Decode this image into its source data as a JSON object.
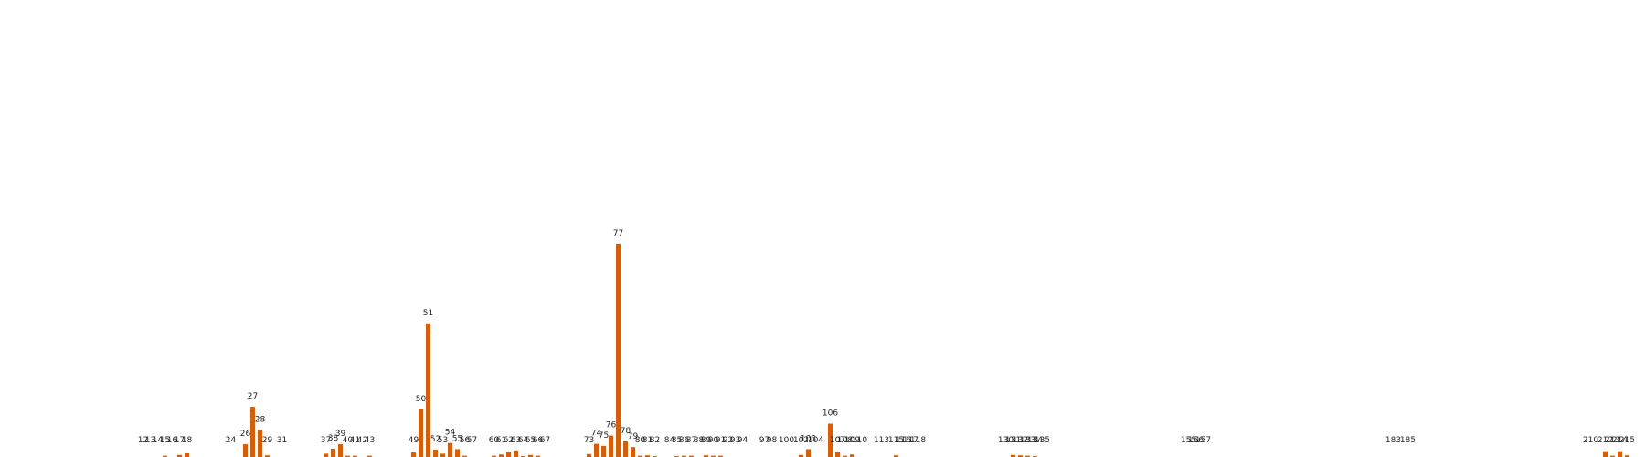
{
  "chart_data": {
    "type": "bar",
    "title": "",
    "xlabel": "",
    "ylabel": "",
    "color": "#d35f0a",
    "axes_visible": false,
    "grid": false,
    "ylim": [
      0,
      106
    ],
    "categories": [
      "12",
      "13",
      "14",
      "15",
      "16",
      "17",
      "18",
      "24",
      "26",
      "27",
      "28",
      "29",
      "31",
      "37",
      "38",
      "39",
      "40",
      "41",
      "42",
      "43",
      "49",
      "50",
      "51",
      "52",
      "53",
      "54",
      "55",
      "56",
      "57",
      "60",
      "61",
      "62",
      "63",
      "64",
      "65",
      "66",
      "67",
      "73",
      "74",
      "75",
      "76",
      "77",
      "78",
      "79",
      "80",
      "81",
      "82",
      "84",
      "85",
      "86",
      "87",
      "88",
      "89",
      "90",
      "91",
      "92",
      "93",
      "94",
      "97",
      "98",
      "100",
      "102",
      "103",
      "104",
      "106",
      "107",
      "108",
      "109",
      "110",
      "113",
      "115",
      "116",
      "117",
      "118",
      "130",
      "131",
      "132",
      "133",
      "134",
      "135",
      "155",
      "156",
      "157",
      "183",
      "185",
      "210",
      "212",
      "213",
      "214",
      "215"
    ],
    "values": [
      0,
      0,
      0,
      0.3,
      0,
      0.5,
      0.9,
      0,
      3.1,
      12.2,
      6.6,
      0.4,
      0,
      0.8,
      2,
      3.1,
      0.3,
      0.3,
      0,
      0.3,
      1.1,
      11.6,
      32.5,
      1.8,
      0.8,
      3.4,
      1.9,
      0.3,
      0,
      0.3,
      0.6,
      1.2,
      1.6,
      0.2,
      0.5,
      0.3,
      0,
      0.7,
      3.2,
      2.7,
      5.2,
      51.8,
      3.8,
      2.4,
      0.3,
      0.4,
      0.2,
      0,
      0.2,
      0.3,
      0.3,
      0,
      0.4,
      0.3,
      0.3,
      0,
      0,
      0,
      0,
      0,
      0,
      0.5,
      1.9,
      0,
      8.1,
      1.2,
      0.3,
      0.6,
      0,
      0,
      0.4,
      0,
      0,
      0,
      0,
      0.5,
      0.4,
      0.3,
      0.2,
      0,
      0,
      0,
      0,
      0,
      0,
      0,
      1.4,
      0.3,
      1.4,
      0.4
    ]
  }
}
